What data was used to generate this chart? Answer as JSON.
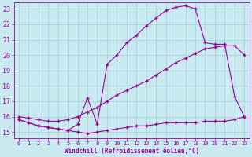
{
  "background_color": "#c8eaf0",
  "grid_color": "#aad4dc",
  "line_color": "#990099",
  "xlabel": "Windchill (Refroidissement éolien,°C)",
  "xlim": [
    -0.5,
    23.5
  ],
  "ylim": [
    14.6,
    23.4
  ],
  "yticks": [
    15,
    16,
    17,
    18,
    19,
    20,
    21,
    22,
    23
  ],
  "xticks": [
    0,
    1,
    2,
    3,
    4,
    5,
    6,
    7,
    8,
    9,
    10,
    11,
    12,
    13,
    14,
    15,
    16,
    17,
    18,
    19,
    20,
    21,
    22,
    23
  ],
  "series1_x": [
    0,
    1,
    2,
    3,
    4,
    5,
    6,
    7,
    8,
    9,
    10,
    11,
    12,
    13,
    14,
    15,
    16,
    17,
    18,
    19,
    20,
    21,
    22,
    23
  ],
  "series1_y": [
    15.8,
    15.6,
    15.4,
    15.3,
    15.2,
    15.1,
    15.0,
    14.9,
    15.0,
    15.1,
    15.2,
    15.3,
    15.4,
    15.4,
    15.5,
    15.6,
    15.6,
    15.6,
    15.6,
    15.7,
    15.7,
    15.7,
    15.8,
    16.0
  ],
  "series2_x": [
    0,
    1,
    2,
    3,
    4,
    5,
    6,
    7,
    8,
    9,
    10,
    11,
    12,
    13,
    14,
    15,
    16,
    17,
    18,
    19,
    20,
    21,
    22,
    23
  ],
  "series2_y": [
    16.0,
    15.9,
    15.8,
    15.7,
    15.7,
    15.8,
    16.0,
    16.3,
    16.6,
    17.0,
    17.4,
    17.7,
    18.0,
    18.3,
    18.7,
    19.1,
    19.5,
    19.8,
    20.1,
    20.4,
    20.5,
    20.6,
    20.6,
    20.0
  ],
  "series3_x": [
    0,
    1,
    2,
    3,
    4,
    5,
    6,
    7,
    8,
    9,
    10,
    11,
    12,
    13,
    14,
    15,
    16,
    17,
    18,
    19,
    20,
    21,
    22,
    23
  ],
  "series3_y": [
    15.8,
    15.6,
    15.4,
    15.3,
    15.2,
    15.1,
    15.5,
    17.2,
    15.5,
    19.4,
    20.0,
    20.8,
    21.3,
    21.9,
    22.4,
    22.9,
    23.1,
    23.2,
    23.0,
    20.8,
    20.7,
    20.7,
    17.3,
    16.0
  ]
}
